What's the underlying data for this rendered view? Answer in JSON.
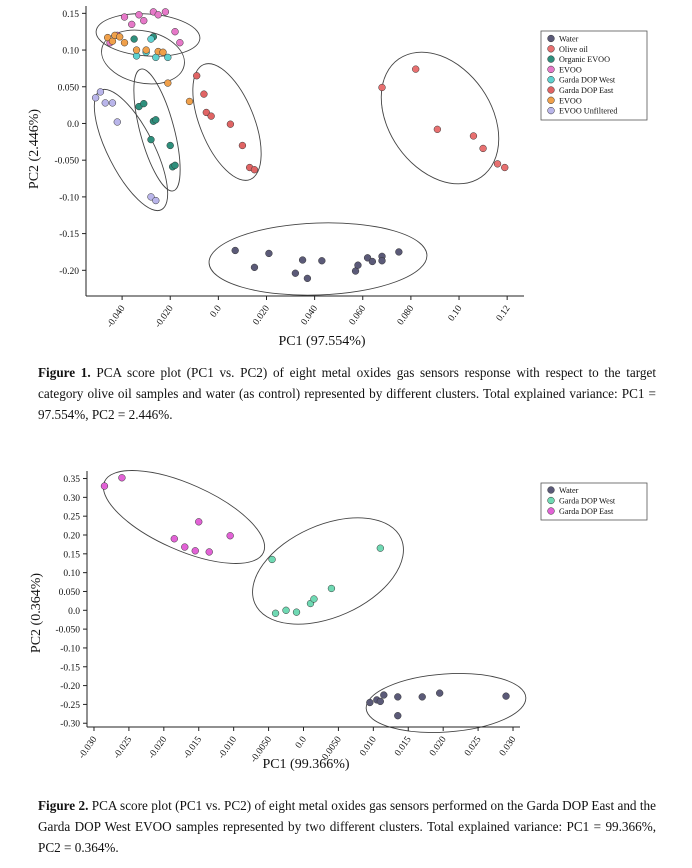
{
  "chart_data": [
    {
      "type": "scatter",
      "title": "",
      "xlabel": "PC1 (97.554%)",
      "ylabel": "PC2 (2.446%)",
      "xlim": [
        -0.055,
        0.127
      ],
      "ylim": [
        -0.235,
        0.16
      ],
      "xticks": [
        -0.04,
        -0.02,
        0.0,
        0.02,
        0.04,
        0.06,
        0.08,
        0.1,
        0.12
      ],
      "xtick_labels": [
        "-0.040",
        "-0.020",
        "0.0",
        "0.020",
        "0.040",
        "0.060",
        "0.080",
        "0.10",
        "0.12"
      ],
      "yticks": [
        0.15,
        0.1,
        0.05,
        0.0,
        -0.05,
        -0.1,
        -0.15,
        -0.2
      ],
      "ytick_labels": [
        "0.15",
        "0.10",
        "0.050",
        "0.0",
        "-0.050",
        "-0.10",
        "-0.15",
        "-0.20"
      ],
      "legend_position": "top-right",
      "series": [
        {
          "name": "Water",
          "color": "#5b5a78",
          "points": [
            [
              0.007,
              -0.173
            ],
            [
              0.015,
              -0.196
            ],
            [
              0.021,
              -0.177
            ],
            [
              0.032,
              -0.204
            ],
            [
              0.035,
              -0.186
            ],
            [
              0.037,
              -0.211
            ],
            [
              0.043,
              -0.187
            ],
            [
              0.057,
              -0.201
            ],
            [
              0.058,
              -0.193
            ],
            [
              0.062,
              -0.183
            ],
            [
              0.064,
              -0.188
            ],
            [
              0.068,
              -0.181
            ],
            [
              0.068,
              -0.187
            ],
            [
              0.075,
              -0.175
            ]
          ]
        },
        {
          "name": "Olive oil",
          "color": "#e87070",
          "points": [
            [
              0.068,
              0.049
            ],
            [
              0.082,
              0.074
            ],
            [
              0.091,
              -0.008
            ],
            [
              0.106,
              -0.017
            ],
            [
              0.11,
              -0.034
            ],
            [
              0.116,
              -0.055
            ],
            [
              0.119,
              -0.06
            ]
          ]
        },
        {
          "name": "Organic EVOO",
          "color": "#2e8f7c",
          "points": [
            [
              -0.033,
              0.023
            ],
            [
              -0.031,
              0.027
            ],
            [
              -0.027,
              0.003
            ],
            [
              -0.026,
              0.005
            ],
            [
              -0.028,
              -0.022
            ],
            [
              -0.02,
              -0.03
            ],
            [
              -0.019,
              -0.059
            ],
            [
              -0.018,
              -0.057
            ],
            [
              -0.035,
              0.115
            ],
            [
              -0.027,
              0.118
            ]
          ]
        },
        {
          "name": "EVOO",
          "color": "#e678c8",
          "points": [
            [
              -0.045,
              0.11
            ],
            [
              -0.042,
              0.12
            ],
            [
              -0.039,
              0.145
            ],
            [
              -0.036,
              0.135
            ],
            [
              -0.033,
              0.148
            ],
            [
              -0.031,
              0.14
            ],
            [
              -0.027,
              0.152
            ],
            [
              -0.025,
              0.148
            ],
            [
              -0.022,
              0.152
            ],
            [
              -0.018,
              0.125
            ],
            [
              -0.016,
              0.11
            ]
          ]
        },
        {
          "name": "Garda DOP West",
          "color": "#5ed1cf",
          "points": [
            [
              -0.034,
              0.092
            ],
            [
              -0.03,
              0.097
            ],
            [
              -0.026,
              0.09
            ],
            [
              -0.021,
              0.09
            ],
            [
              -0.028,
              0.115
            ]
          ]
        },
        {
          "name": "Garda DOP East",
          "color": "#e06464",
          "points": [
            [
              -0.009,
              0.065
            ],
            [
              -0.006,
              0.04
            ],
            [
              -0.005,
              0.015
            ],
            [
              -0.003,
              0.01
            ],
            [
              0.005,
              -0.001
            ],
            [
              0.01,
              -0.03
            ],
            [
              0.013,
              -0.06
            ],
            [
              0.015,
              -0.063
            ]
          ]
        },
        {
          "name": "EVOO",
          "color": "#f0a04a",
          "points": [
            [
              -0.046,
              0.117
            ],
            [
              -0.044,
              0.112
            ],
            [
              -0.043,
              0.12
            ],
            [
              -0.041,
              0.118
            ],
            [
              -0.039,
              0.11
            ],
            [
              -0.034,
              0.1
            ],
            [
              -0.03,
              0.1
            ],
            [
              -0.025,
              0.098
            ],
            [
              -0.023,
              0.097
            ],
            [
              -0.021,
              0.055
            ],
            [
              -0.012,
              0.03
            ]
          ]
        },
        {
          "name": "EVOO Unfiltered",
          "color": "#b9b5ea",
          "points": [
            [
              -0.051,
              0.035
            ],
            [
              -0.049,
              0.043
            ],
            [
              -0.047,
              0.028
            ],
            [
              -0.044,
              0.028
            ],
            [
              -0.042,
              0.002
            ],
            [
              -0.028,
              -0.1
            ],
            [
              -0.026,
              -0.105
            ]
          ]
        }
      ]
    },
    {
      "type": "scatter",
      "title": "",
      "xlabel": "PC1 (99.366%)",
      "ylabel": "PC2 (0.364%)",
      "xlim": [
        -0.031,
        0.031
      ],
      "ylim": [
        -0.31,
        0.37
      ],
      "xticks": [
        -0.03,
        -0.025,
        -0.02,
        -0.015,
        -0.01,
        -0.005,
        0.0,
        0.005,
        0.01,
        0.015,
        0.02,
        0.025,
        0.03
      ],
      "xtick_labels": [
        "-0.030",
        "-0.025",
        "-0.020",
        "-0.015",
        "-0.010",
        "-0.0050",
        "0.0",
        "0.0050",
        "0.010",
        "0.015",
        "0.020",
        "0.025",
        "0.030"
      ],
      "yticks": [
        0.35,
        0.3,
        0.25,
        0.2,
        0.15,
        0.1,
        0.05,
        0.0,
        -0.05,
        -0.1,
        -0.15,
        -0.2,
        -0.25,
        -0.3
      ],
      "ytick_labels": [
        "0.35",
        "0.30",
        "0.25",
        "0.20",
        "0.15",
        "0.10",
        "0.050",
        "0.0",
        "-0.050",
        "-0.10",
        "-0.15",
        "-0.20",
        "-0.25",
        "-0.30"
      ],
      "legend_position": "top-right",
      "series": [
        {
          "name": "Water",
          "color": "#5b5a78",
          "points": [
            [
              0.0095,
              -0.245
            ],
            [
              0.0105,
              -0.238
            ],
            [
              0.011,
              -0.242
            ],
            [
              0.0115,
              -0.225
            ],
            [
              0.0135,
              -0.23
            ],
            [
              0.0135,
              -0.28
            ],
            [
              0.017,
              -0.23
            ],
            [
              0.0195,
              -0.22
            ],
            [
              0.029,
              -0.228
            ]
          ]
        },
        {
          "name": "Garda DOP West",
          "color": "#6fd9b3",
          "points": [
            [
              -0.0045,
              0.135
            ],
            [
              -0.004,
              -0.008
            ],
            [
              -0.0025,
              0.0
            ],
            [
              -0.001,
              -0.005
            ],
            [
              0.001,
              0.018
            ],
            [
              0.0015,
              0.03
            ],
            [
              0.004,
              0.058
            ],
            [
              0.011,
              0.165
            ]
          ]
        },
        {
          "name": "Garda DOP East",
          "color": "#e262d6",
          "points": [
            [
              -0.0285,
              0.33
            ],
            [
              -0.026,
              0.352
            ],
            [
              -0.0185,
              0.19
            ],
            [
              -0.017,
              0.168
            ],
            [
              -0.0155,
              0.158
            ],
            [
              -0.015,
              0.235
            ],
            [
              -0.0135,
              0.155
            ],
            [
              -0.0105,
              0.198
            ]
          ]
        }
      ]
    }
  ],
  "captions": {
    "fig1_label": "Figure 1.",
    "fig1_text": " PCA score plot (PC1 vs.  PC2) of eight metal oxides gas sensors response with respect to the target category olive oil samples and water (as control) represented by different clusters. Total explained variance: PC1 = 97.554%, PC2 = 2.446%.",
    "fig2_label": "Figure 2.",
    "fig2_text": " PCA score plot (PC1 vs. PC2) of eight metal oxides gas sensors performed on the Garda DOP East and the Garda DOP West EVOO samples represented by two different clusters. Total explained variance: PC1 = 99.366%, PC2 = 0.364%."
  }
}
